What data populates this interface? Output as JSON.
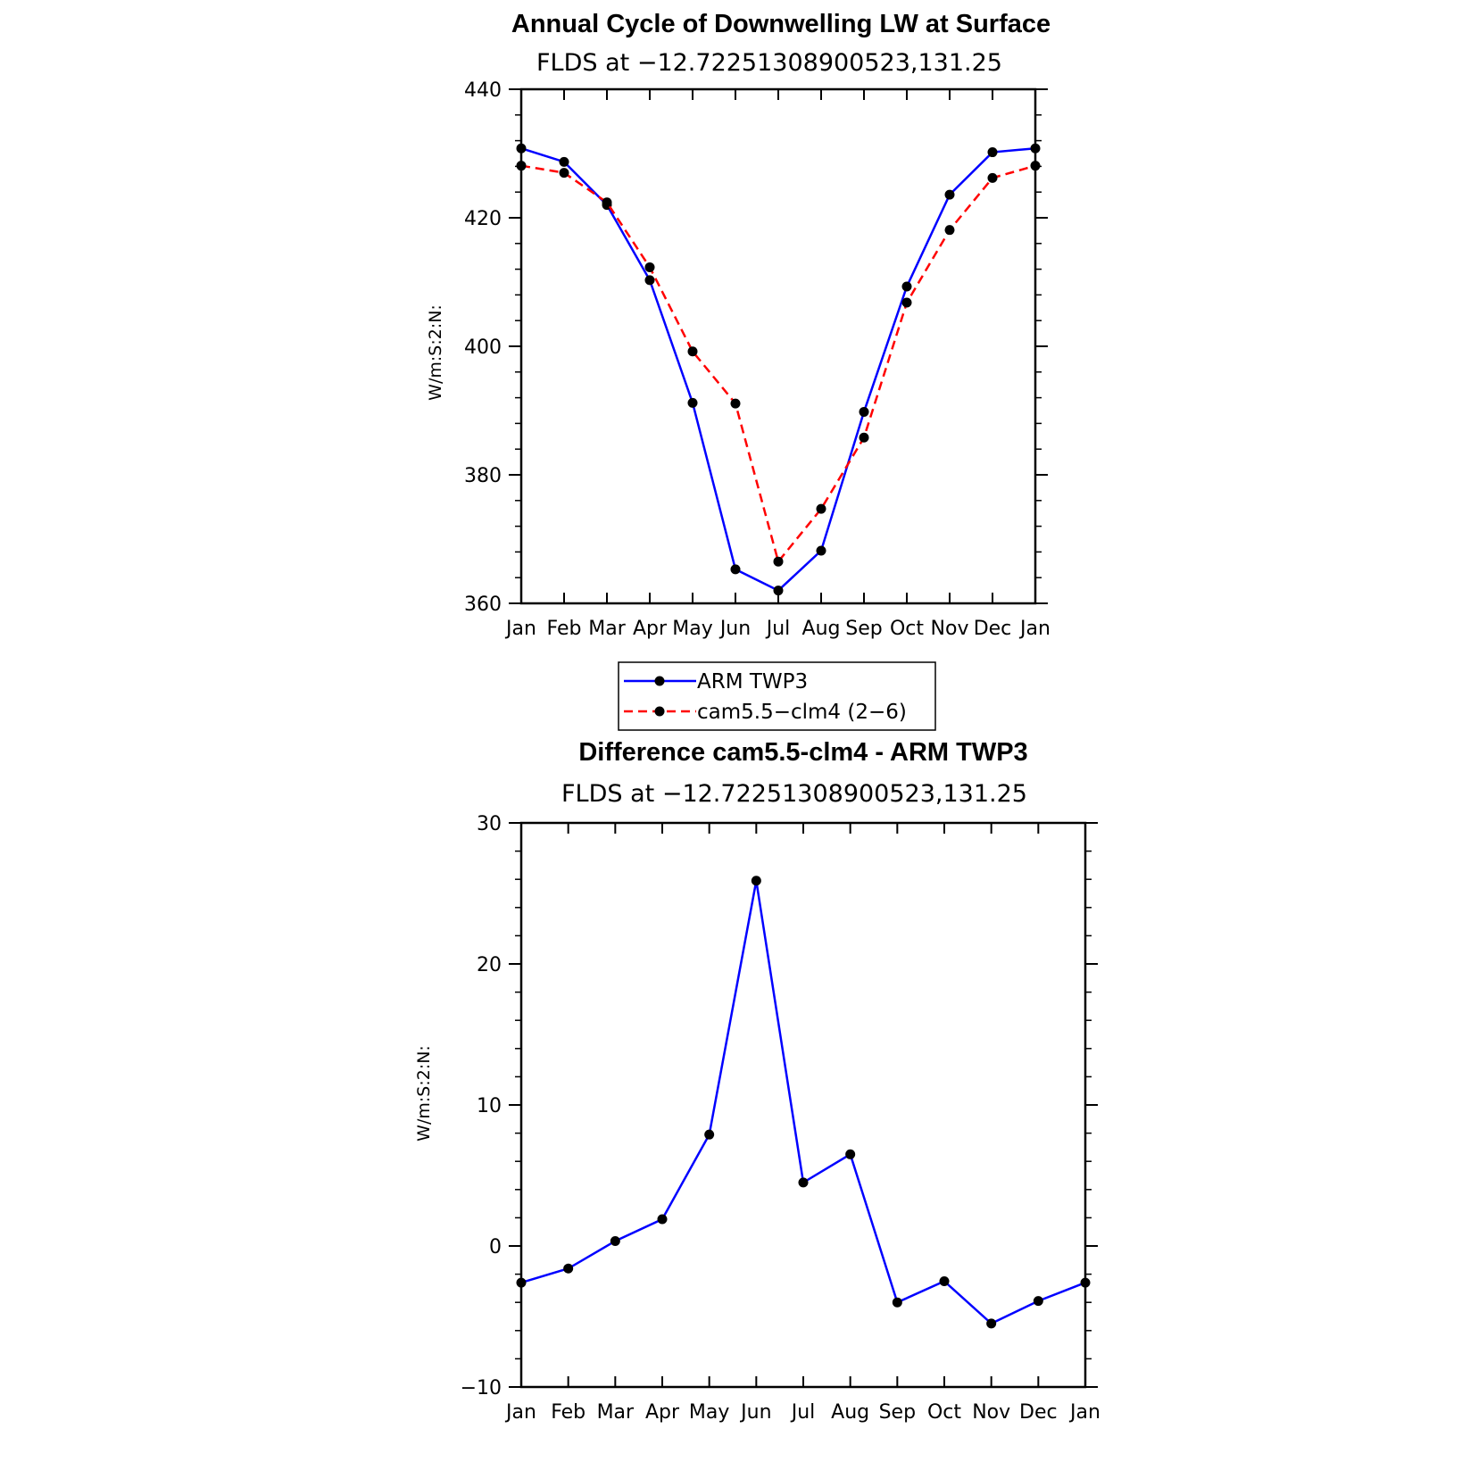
{
  "chart_data": [
    {
      "type": "line",
      "title": "Annual Cycle of Downwelling LW at Surface",
      "subtitle": "FLDS at −12.72251308900523,131.25",
      "ylabel": "W/m:S:2:N:",
      "xlabel": "",
      "categories": [
        "Jan",
        "Feb",
        "Mar",
        "Apr",
        "May",
        "Jun",
        "Jul",
        "Aug",
        "Sep",
        "Oct",
        "Nov",
        "Dec",
        "Jan"
      ],
      "ylim": [
        360,
        440
      ],
      "yticks": [
        "360",
        "380",
        "400",
        "420",
        "440"
      ],
      "series": [
        {
          "name": "ARM TWP3",
          "color": "#0000ff",
          "dash": "solid",
          "values": [
            430.8,
            428.7,
            422.0,
            410.3,
            391.2,
            365.3,
            362.0,
            368.2,
            389.8,
            409.3,
            423.6,
            430.2,
            430.8
          ]
        },
        {
          "name": "cam5.5−clm4 (2−6)",
          "color": "#ff0000",
          "dash": "dashed",
          "values": [
            428.1,
            427.0,
            422.4,
            412.3,
            399.2,
            391.1,
            366.5,
            374.7,
            385.8,
            406.8,
            418.1,
            426.2,
            428.1
          ]
        }
      ],
      "legend": [
        "ARM TWP3",
        "cam5.5−clm4 (2−6)"
      ]
    },
    {
      "type": "line",
      "title": "Difference cam5.5-clm4 - ARM TWP3",
      "subtitle": "FLDS at −12.72251308900523,131.25",
      "ylabel": "W/m:S:2:N:",
      "xlabel": "",
      "categories": [
        "Jan",
        "Feb",
        "Mar",
        "Apr",
        "May",
        "Jun",
        "Jul",
        "Aug",
        "Sep",
        "Oct",
        "Nov",
        "Dec",
        "Jan"
      ],
      "ylim": [
        -10,
        30
      ],
      "yticks": [
        "−10",
        "0",
        "10",
        "20",
        "30"
      ],
      "series": [
        {
          "name": "cam5.5-clm4 - ARM TWP3",
          "color": "#0000ff",
          "dash": "solid",
          "values": [
            -2.6,
            -1.6,
            0.35,
            1.9,
            7.9,
            25.9,
            4.5,
            6.5,
            -4.0,
            -2.5,
            -5.5,
            -3.9,
            -2.6
          ]
        }
      ]
    }
  ]
}
